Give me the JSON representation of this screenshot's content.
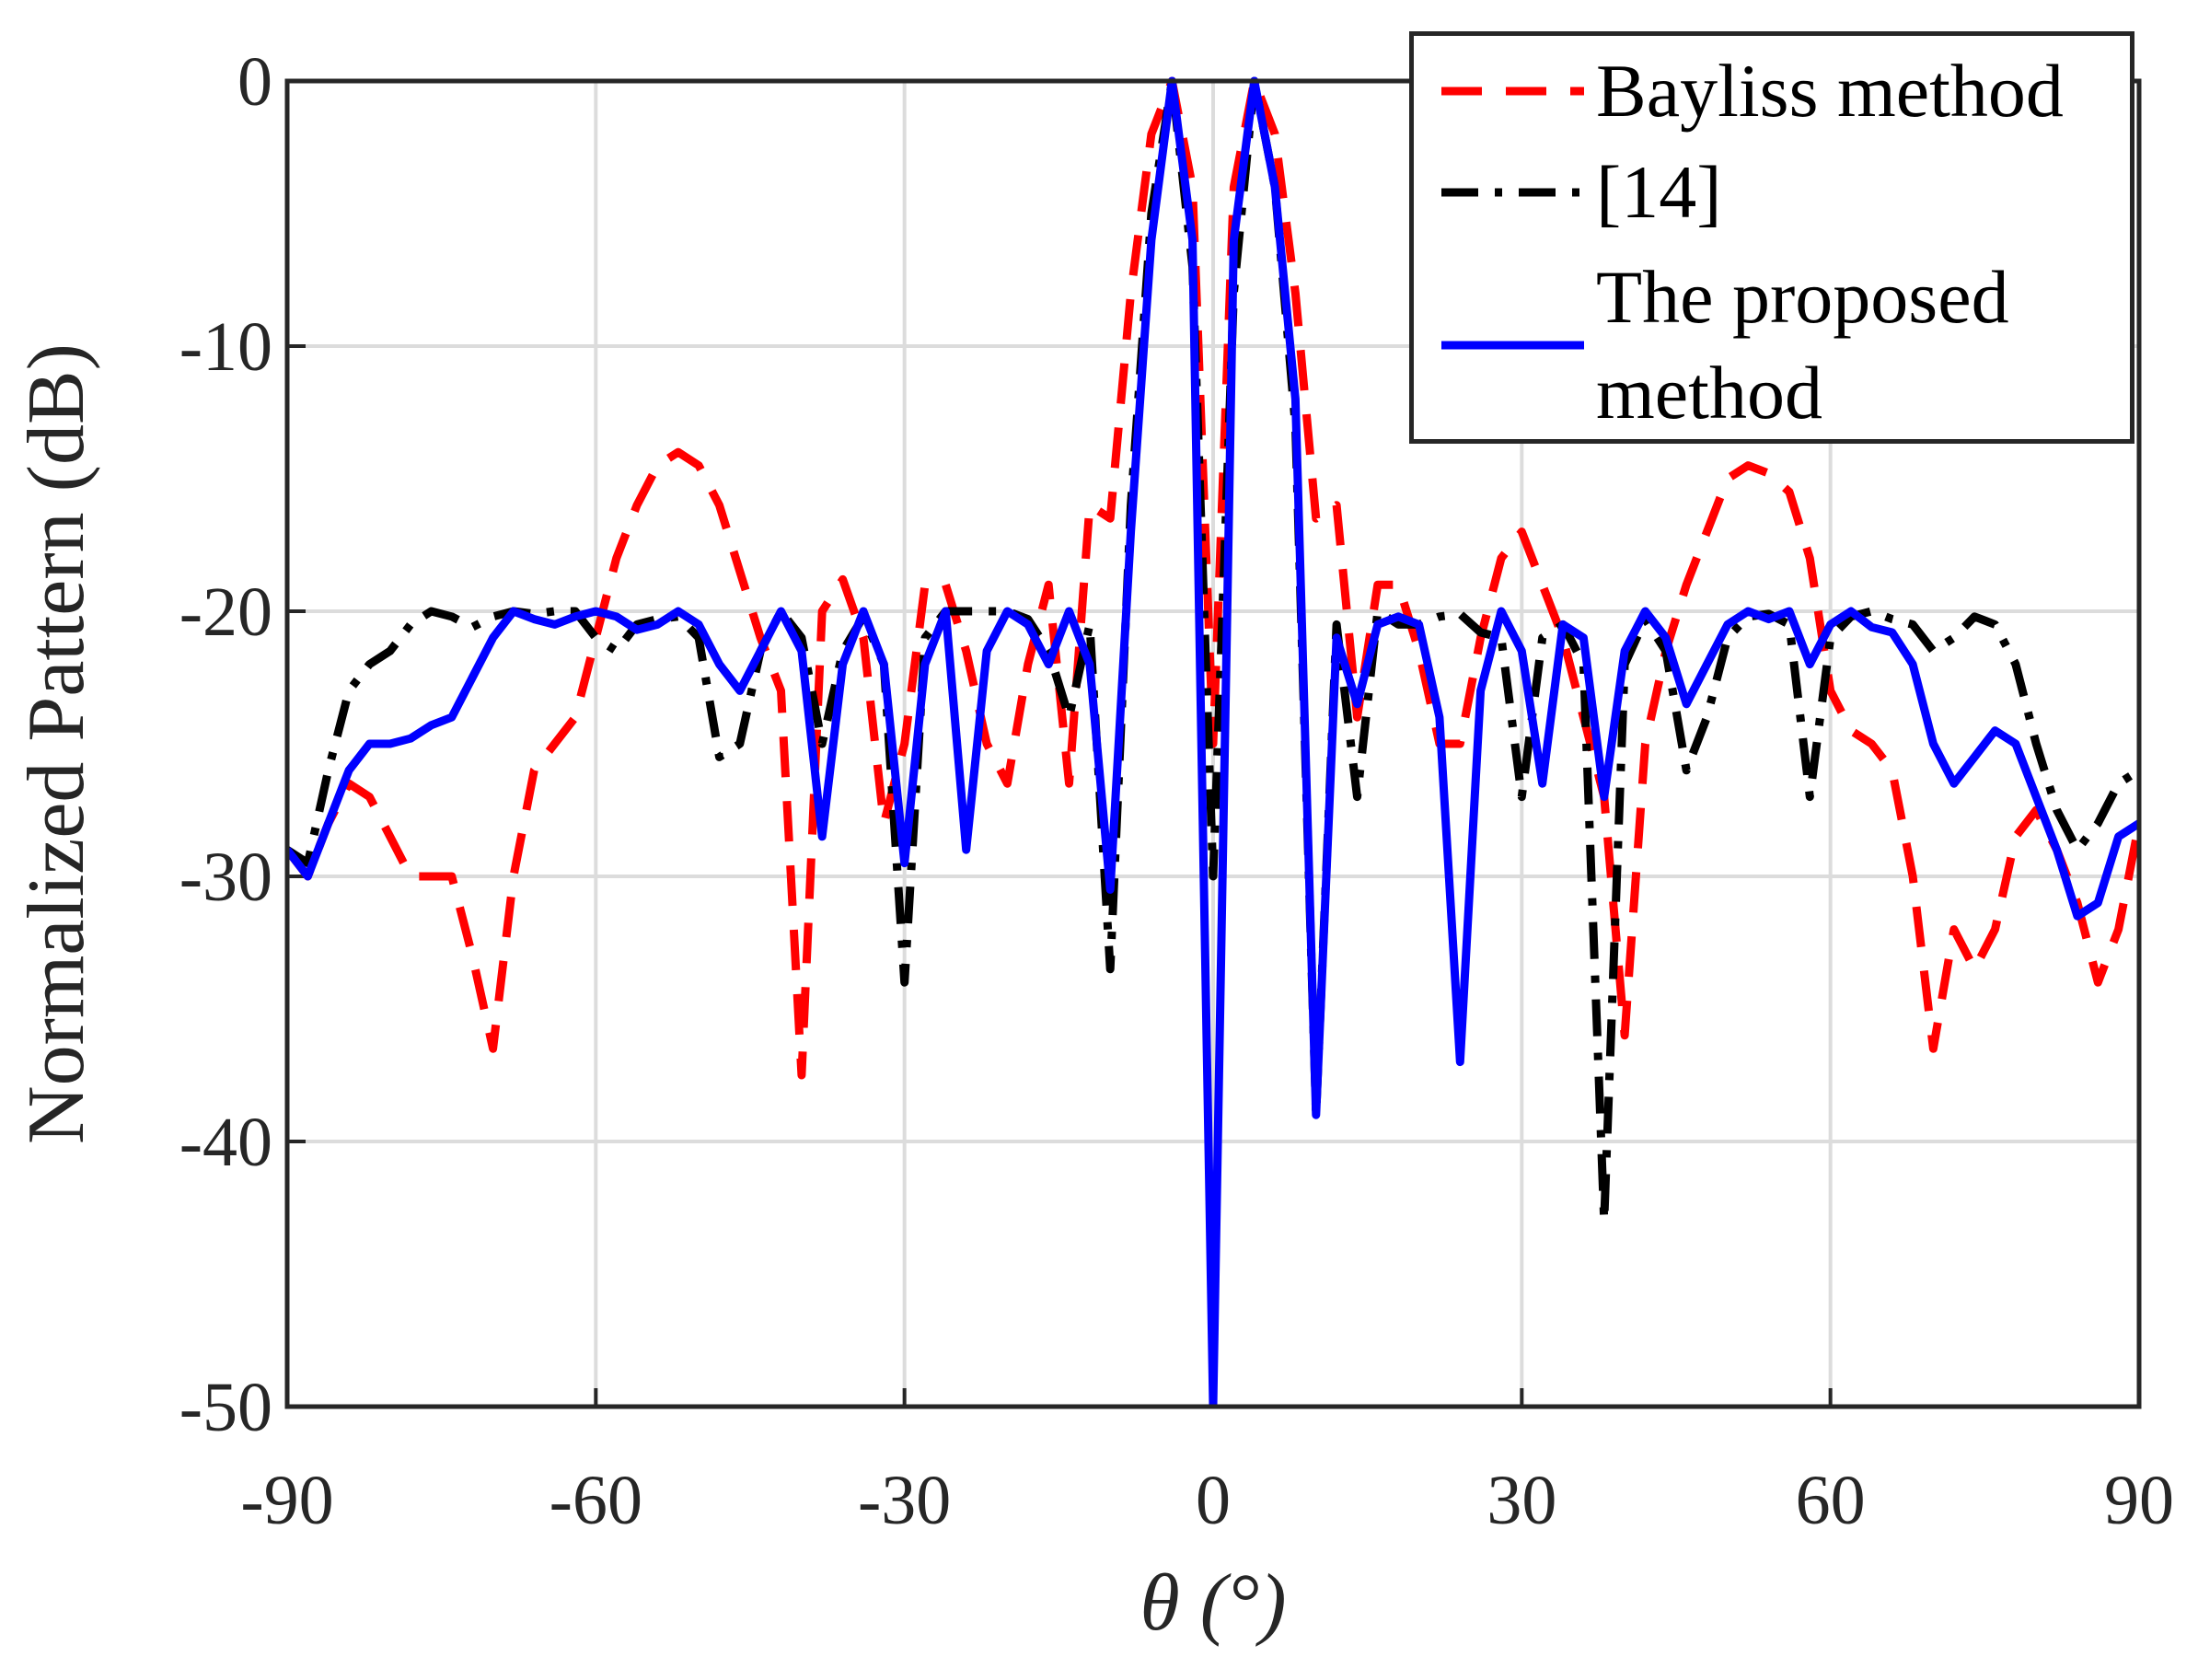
{
  "chart_data": {
    "type": "line",
    "xlabel": "θ (°)",
    "ylabel": "Normalized Pattern (dB)",
    "xlim": [
      -90,
      90
    ],
    "ylim": [
      -50,
      0
    ],
    "xticks": [
      -90,
      -60,
      -30,
      0,
      30,
      60,
      90
    ],
    "yticks": [
      -50,
      -40,
      -30,
      -20,
      -10,
      0
    ],
    "grid": true,
    "legend": "upper right",
    "x": [
      -90,
      -88,
      -86,
      -84,
      -82,
      -80,
      -78,
      -76,
      -74,
      -72,
      -70,
      -68,
      -66,
      -64,
      -62,
      -60,
      -58,
      -56,
      -54,
      -52,
      -50,
      -48,
      -46,
      -44,
      -42,
      -40,
      -38,
      -36,
      -34,
      -32,
      -30,
      -28,
      -26,
      -24,
      -22,
      -20,
      -18,
      -16,
      -14,
      -12,
      -10,
      -8,
      -6,
      -4,
      -2,
      0,
      2,
      4,
      6,
      8,
      10,
      12,
      14,
      16,
      18,
      20,
      22,
      24,
      26,
      28,
      30,
      32,
      34,
      36,
      38,
      40,
      42,
      44,
      46,
      48,
      50,
      52,
      54,
      56,
      58,
      60,
      62,
      64,
      66,
      68,
      70,
      72,
      74,
      76,
      78,
      80,
      82,
      84,
      86,
      88,
      90
    ],
    "series": [
      {
        "name": "Bayliss method",
        "color": "#ff0000",
        "dash": "dashed",
        "values": [
          -29,
          -30,
          -28,
          -26.5,
          -27,
          -28.5,
          -30,
          -30,
          -30,
          -33,
          -36.5,
          -30,
          -26,
          -25,
          -24,
          -21,
          -18,
          -16,
          -14.5,
          -14,
          -14.5,
          -16,
          -18.5,
          -21,
          -23,
          -37.5,
          -20,
          -18.8,
          -21,
          -28,
          -25,
          -19,
          -19,
          -21.5,
          -25,
          -26.5,
          -22,
          -19,
          -26.5,
          -16,
          -16.5,
          -8,
          -2,
          0,
          -4,
          -25,
          -4,
          0,
          -2,
          -8,
          -16.5,
          -16,
          -24,
          -19,
          -19,
          -21.5,
          -25,
          -25,
          -21,
          -18,
          -17,
          -19,
          -21,
          -24,
          -27,
          -36,
          -25,
          -21.5,
          -19,
          -17,
          -15,
          -14.5,
          -14.8,
          -15.5,
          -18,
          -23,
          -24.5,
          -25,
          -26,
          -30,
          -36.5,
          -32,
          -33.5,
          -32,
          -28.5,
          -27.5,
          -29,
          -31,
          -34,
          -32,
          -28
        ]
      },
      {
        "name": "[14]",
        "color": "#000000",
        "dash": "dashdot",
        "values": [
          -29,
          -29.5,
          -26,
          -23,
          -22,
          -21.5,
          -20.5,
          -20,
          -20.2,
          -20.6,
          -20.2,
          -20,
          -20.1,
          -20,
          -20,
          -21,
          -21.5,
          -20.5,
          -20.3,
          -20.2,
          -21,
          -25.5,
          -25,
          -21.5,
          -20,
          -21,
          -25,
          -21.5,
          -20.2,
          -22,
          -34,
          -21,
          -20,
          -20,
          -20,
          -20,
          -20.3,
          -21.5,
          -24,
          -20.5,
          -33.5,
          -16,
          -5,
          0,
          -7,
          -30,
          -8,
          0,
          -4,
          -13,
          -39,
          -20.5,
          -27,
          -20,
          -20.5,
          -20.5,
          -20.2,
          -20.1,
          -20.8,
          -21,
          -27,
          -21,
          -20.5,
          -22,
          -43,
          -22,
          -20.3,
          -21.5,
          -26,
          -24,
          -21,
          -20.2,
          -20.1,
          -20.5,
          -27,
          -21,
          -20.2,
          -20,
          -20.3,
          -20.5,
          -21.5,
          -21,
          -20.2,
          -20.5,
          -22,
          -25,
          -27.5,
          -29,
          -28,
          -26.5,
          -26
        ]
      },
      {
        "name": "The proposed method",
        "color": "#0000ff",
        "dash": "solid",
        "values": [
          -29,
          -30,
          -28,
          -26,
          -25,
          -25,
          -24.8,
          -24.3,
          -24,
          -22.5,
          -21,
          -20,
          -20.3,
          -20.5,
          -20.2,
          -20,
          -20.2,
          -20.7,
          -20.5,
          -20,
          -20.5,
          -22,
          -23,
          -21.5,
          -20,
          -21.5,
          -28.5,
          -22,
          -20,
          -22,
          -29.5,
          -22,
          -20,
          -29,
          -21.5,
          -20,
          -20.5,
          -22,
          -20,
          -22,
          -30.5,
          -17,
          -6,
          0,
          -6,
          -50,
          -6,
          0,
          -4,
          -12,
          -39,
          -21,
          -23.5,
          -20.5,
          -20.2,
          -20.5,
          -24,
          -37,
          -23,
          -20,
          -21.5,
          -26.5,
          -20.5,
          -21,
          -27,
          -21.5,
          -20,
          -21,
          -23.5,
          -22,
          -20.5,
          -20,
          -20.3,
          -20,
          -22,
          -20.5,
          -20,
          -20.6,
          -20.8,
          -22,
          -25,
          -26.5,
          -25.5,
          -24.5,
          -25,
          -27,
          -29,
          -31.5,
          -31,
          -28.5,
          -28
        ]
      }
    ]
  }
}
